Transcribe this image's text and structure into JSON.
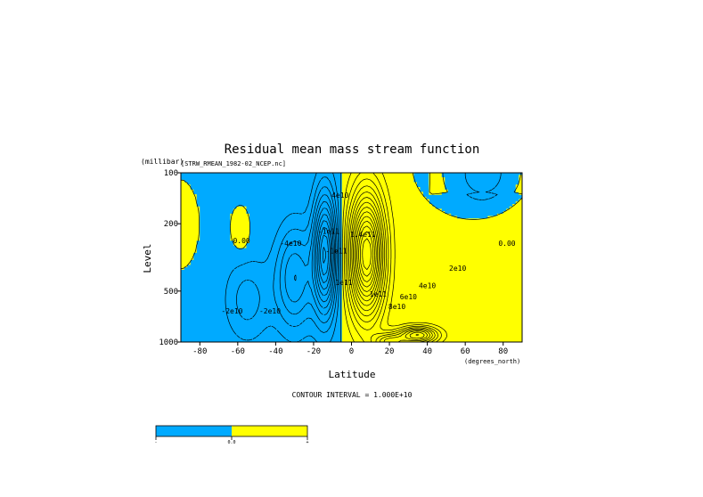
{
  "chart_data": {
    "type": "contour",
    "title": "Residual mean mass stream function",
    "subtitle": "[STRW_RMEAN_1982-02_NCEP.nc]",
    "ylabel": "Level",
    "yunits": "(millibar)",
    "xlabel": "Latitude",
    "xunits": "(degrees_north)",
    "xlim": [
      -90,
      90
    ],
    "ylim": [
      1000,
      100
    ],
    "yscale": "log",
    "x_ticks": [
      -80,
      -60,
      -40,
      -20,
      0,
      20,
      40,
      60,
      80
    ],
    "y_ticks": [
      100,
      200,
      500,
      1000
    ],
    "grid": false,
    "contour_interval_text": "CONTOUR INTERVAL = 1.000E+10",
    "contour_labels": [
      {
        "text": "0.00",
        "lat": -58,
        "p": 260
      },
      {
        "text": "0.00",
        "lat": 82,
        "p": 270
      },
      {
        "text": "-4e10",
        "lat": -32,
        "p": 270
      },
      {
        "text": "-2e10",
        "lat": -63,
        "p": 680
      },
      {
        "text": "-2e10",
        "lat": -43,
        "p": 680
      },
      {
        "text": "-1e11",
        "lat": -8,
        "p": 300
      },
      {
        "text": "-1e11",
        "lat": -12,
        "p": 230
      },
      {
        "text": "4e10",
        "lat": -6,
        "p": 140
      },
      {
        "text": "1e11",
        "lat": -4,
        "p": 460
      },
      {
        "text": "1.4e11",
        "lat": 6,
        "p": 240
      },
      {
        "text": "1e11",
        "lat": 14,
        "p": 540
      },
      {
        "text": "2e10",
        "lat": 56,
        "p": 380
      },
      {
        "text": "4e10",
        "lat": 40,
        "p": 480
      },
      {
        "text": "6e10",
        "lat": 30,
        "p": 560
      },
      {
        "text": "8e10",
        "lat": 24,
        "p": 640
      }
    ],
    "fill_colors": {
      "negative": "#00aaff",
      "positive": "#ffff00"
    },
    "colorbar": {
      "labels": [
        "-",
        "0.0",
        "+"
      ]
    }
  }
}
